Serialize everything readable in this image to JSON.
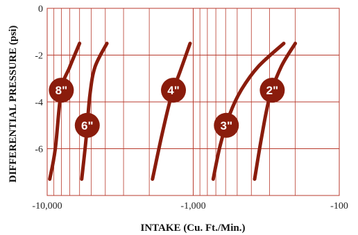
{
  "chart_data": {
    "type": "line",
    "xlabel": "INTAKE (Cu. Ft./Min.)",
    "ylabel": "DIFFERENTIAL PRESSURE (psi)",
    "x_scale": "log",
    "x_axis_reversed": true,
    "xlim": [
      10000,
      100
    ],
    "ylim": [
      -8,
      0
    ],
    "x_ticks": [
      10000,
      1000,
      100
    ],
    "x_tick_labels": [
      "-10,000",
      "-1,000",
      "-100"
    ],
    "y_ticks": [
      0,
      -2,
      -4,
      -6
    ],
    "y_tick_labels": [
      "0",
      "-2",
      "-4",
      "-6"
    ],
    "grid": true,
    "colors": {
      "grid": "#b83a2c",
      "series": "#8a1c0c",
      "badge": "#8a1c0c"
    },
    "series": [
      {
        "name": "8\"",
        "points": [
          [
            9600,
            -7.3
          ],
          [
            8800,
            -6.0
          ],
          [
            8000,
            -3.5
          ],
          [
            7000,
            -2.5
          ],
          [
            6000,
            -1.5
          ]
        ]
      },
      {
        "name": "6\"",
        "points": [
          [
            5800,
            -7.3
          ],
          [
            5400,
            -5.5
          ],
          [
            5100,
            -3.7
          ],
          [
            4700,
            -2.5
          ],
          [
            3900,
            -1.5
          ]
        ]
      },
      {
        "name": "4\"",
        "points": [
          [
            1900,
            -7.3
          ],
          [
            1650,
            -5.5
          ],
          [
            1420,
            -3.8
          ],
          [
            1230,
            -2.7
          ],
          [
            1050,
            -1.5
          ]
        ]
      },
      {
        "name": "3\"",
        "points": [
          [
            730,
            -7.3
          ],
          [
            650,
            -5.8
          ],
          [
            560,
            -4.5
          ],
          [
            470,
            -3.5
          ],
          [
            360,
            -2.5
          ],
          [
            240,
            -1.5
          ]
        ]
      },
      {
        "name": "2\"",
        "points": [
          [
            380,
            -7.3
          ],
          [
            340,
            -5.5
          ],
          [
            300,
            -3.8
          ],
          [
            250,
            -2.5
          ],
          [
            200,
            -1.5
          ]
        ]
      }
    ]
  }
}
